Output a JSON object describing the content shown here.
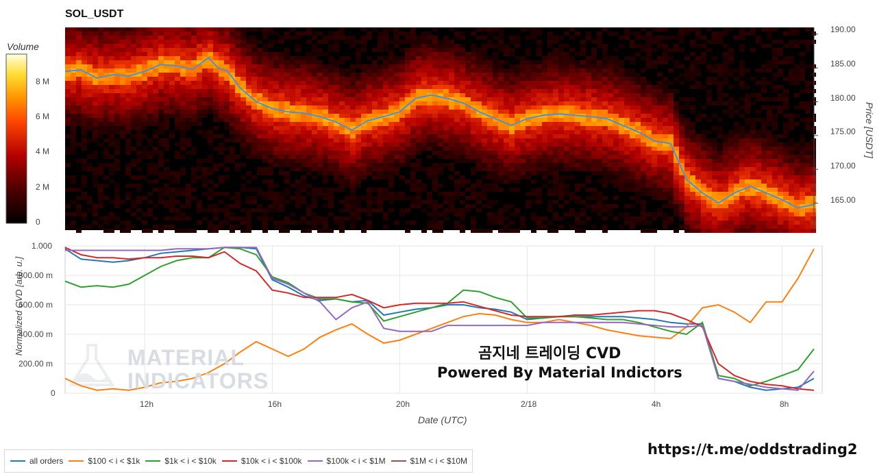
{
  "title": "SOL_USDT",
  "colorbar": {
    "title": "Volume",
    "ticks": [
      "0",
      "2 M",
      "4 M",
      "6 M",
      "8 M"
    ]
  },
  "top_axis": {
    "label": "Price [USDT]",
    "ticks": [
      "190.00",
      "185.00",
      "180.00",
      "175.00",
      "170.00",
      "165.00"
    ]
  },
  "bottom_axis": {
    "label": "Normalized CVD [arb. u.]",
    "ticks": [
      "1.000",
      "800.00 m",
      "600.00 m",
      "400.00 m",
      "200.00 m",
      "0"
    ]
  },
  "x_axis": {
    "label": "Date (UTC)",
    "ticks": [
      "12h",
      "16h",
      "20h",
      "2/18",
      "4h",
      "8h"
    ]
  },
  "watermark": [
    "MATERIAL",
    "INDICATORS"
  ],
  "overlay": {
    "line1": "곰지네 트레이딩 CVD",
    "line2": "Powered By Material Indictors"
  },
  "link": "https://t.me/oddstrading2",
  "colors": {
    "all": "#1f77b4",
    "s100": "#ff7f0e",
    "s1k": "#2ca02c",
    "s10k": "#d62728",
    "s100k": "#9467bd",
    "s1m": "#8c564b",
    "price": "#4a90d9"
  },
  "chart_data": [
    {
      "type": "heatmap",
      "title": "SOL_USDT",
      "ylabel": "Price [USDT]",
      "xlabel": "Date (UTC)",
      "x_ticks": [
        "12h",
        "16h",
        "20h",
        "2/18",
        "4h",
        "8h"
      ],
      "ylim": [
        161,
        191
      ],
      "colorbar_label": "Volume",
      "colorbar_range": [
        0,
        9.5
      ],
      "price_series": {
        "name": "price",
        "x_hours": [
          9.5,
          10.0,
          10.5,
          11.0,
          11.5,
          12.0,
          12.5,
          13.0,
          13.5,
          14.0,
          14.3,
          14.6,
          15.0,
          15.5,
          16.0,
          16.5,
          17.0,
          17.5,
          18.0,
          18.5,
          19.0,
          19.5,
          20.0,
          20.5,
          21.0,
          21.5,
          22.0,
          22.5,
          23.0,
          23.5,
          24.0,
          24.5,
          25.0,
          25.5,
          26.0,
          26.5,
          27.0,
          27.5,
          28.0,
          28.5,
          29.0,
          29.5,
          30.0,
          30.5,
          31.0,
          31.5,
          32.0,
          32.5,
          33.0
        ],
        "values": [
          184.5,
          184.7,
          183.5,
          184.0,
          183.8,
          184.5,
          185.5,
          185.3,
          184.8,
          186.5,
          185.0,
          184.5,
          182.0,
          180.0,
          179.0,
          178.5,
          178.3,
          177.8,
          177.0,
          175.8,
          177.2,
          177.8,
          178.5,
          180.5,
          181.0,
          180.5,
          179.8,
          178.5,
          177.5,
          176.5,
          177.5,
          178.0,
          178.2,
          178.0,
          177.8,
          177.5,
          176.5,
          175.5,
          174.2,
          173.8,
          168.5,
          166.5,
          165.0,
          166.5,
          167.5,
          166.5,
          165.5,
          164.3,
          164.8
        ]
      }
    },
    {
      "type": "line",
      "ylabel": "Normalized CVD [arb. u.]",
      "xlabel": "Date (UTC)",
      "x_ticks": [
        "12h",
        "16h",
        "20h",
        "2/18",
        "4h",
        "8h"
      ],
      "ylim": [
        0,
        1
      ],
      "x_hours": [
        9.5,
        10.0,
        10.5,
        11.0,
        11.5,
        12.0,
        12.5,
        13.0,
        13.5,
        14.0,
        14.5,
        15.0,
        15.5,
        16.0,
        16.5,
        17.0,
        17.5,
        18.0,
        18.5,
        19.0,
        19.5,
        20.0,
        20.5,
        21.0,
        21.5,
        22.0,
        22.5,
        23.0,
        23.5,
        24.0,
        24.5,
        25.0,
        25.5,
        26.0,
        26.5,
        27.0,
        27.5,
        28.0,
        28.5,
        29.0,
        29.5,
        30.0,
        30.5,
        31.0,
        31.5,
        32.0,
        32.5,
        33.0
      ],
      "series": [
        {
          "name": "all orders",
          "values": [
            0.98,
            0.91,
            0.9,
            0.89,
            0.9,
            0.92,
            0.95,
            0.96,
            0.97,
            0.98,
            0.99,
            0.99,
            0.98,
            0.77,
            0.72,
            0.66,
            0.63,
            0.64,
            0.62,
            0.63,
            0.53,
            0.55,
            0.57,
            0.58,
            0.6,
            0.6,
            0.58,
            0.57,
            0.55,
            0.5,
            0.51,
            0.52,
            0.52,
            0.52,
            0.52,
            0.52,
            0.51,
            0.5,
            0.48,
            0.47,
            0.47,
            0.1,
            0.08,
            0.04,
            0.02,
            0.03,
            0.04,
            0.1
          ]
        },
        {
          "name": "$100 < i < $1k",
          "values": [
            0.1,
            0.05,
            0.02,
            0.03,
            0.02,
            0.04,
            0.07,
            0.08,
            0.1,
            0.14,
            0.2,
            0.28,
            0.35,
            0.3,
            0.25,
            0.3,
            0.38,
            0.43,
            0.47,
            0.4,
            0.34,
            0.36,
            0.4,
            0.44,
            0.48,
            0.52,
            0.54,
            0.53,
            0.5,
            0.48,
            0.48,
            0.5,
            0.48,
            0.46,
            0.43,
            0.41,
            0.39,
            0.38,
            0.37,
            0.45,
            0.58,
            0.6,
            0.55,
            0.48,
            0.62,
            0.62,
            0.78,
            0.98
          ]
        },
        {
          "name": "$1k < i < $10k",
          "values": [
            0.76,
            0.72,
            0.73,
            0.72,
            0.74,
            0.8,
            0.86,
            0.9,
            0.92,
            0.92,
            0.99,
            0.98,
            0.94,
            0.79,
            0.75,
            0.68,
            0.64,
            0.64,
            0.62,
            0.61,
            0.49,
            0.52,
            0.55,
            0.58,
            0.61,
            0.7,
            0.69,
            0.65,
            0.62,
            0.51,
            0.51,
            0.52,
            0.52,
            0.51,
            0.5,
            0.5,
            0.48,
            0.45,
            0.42,
            0.4,
            0.48,
            0.12,
            0.1,
            0.05,
            0.08,
            0.12,
            0.16,
            0.3
          ]
        },
        {
          "name": "$10k < i < $100k",
          "values": [
            0.99,
            0.94,
            0.92,
            0.92,
            0.91,
            0.92,
            0.92,
            0.93,
            0.93,
            0.92,
            0.96,
            0.88,
            0.83,
            0.7,
            0.68,
            0.65,
            0.65,
            0.65,
            0.67,
            0.63,
            0.58,
            0.6,
            0.61,
            0.61,
            0.61,
            0.62,
            0.59,
            0.56,
            0.53,
            0.52,
            0.52,
            0.52,
            0.53,
            0.53,
            0.54,
            0.55,
            0.56,
            0.56,
            0.54,
            0.5,
            0.45,
            0.2,
            0.12,
            0.08,
            0.06,
            0.05,
            0.03,
            0.02
          ]
        },
        {
          "name": "$100k < i < $1M",
          "values": [
            0.97,
            0.97,
            0.97,
            0.97,
            0.97,
            0.97,
            0.97,
            0.98,
            0.98,
            0.98,
            0.99,
            0.99,
            0.99,
            0.78,
            0.74,
            0.68,
            0.62,
            0.5,
            0.58,
            0.62,
            0.44,
            0.42,
            0.42,
            0.42,
            0.46,
            0.46,
            0.46,
            0.46,
            0.46,
            0.46,
            0.48,
            0.48,
            0.48,
            0.48,
            0.48,
            0.48,
            0.47,
            0.46,
            0.45,
            0.45,
            0.46,
            0.1,
            0.08,
            0.06,
            0.04,
            0.03,
            0.02,
            0.15
          ]
        },
        {
          "name": "$1M < i < $10M",
          "values": []
        }
      ]
    }
  ]
}
